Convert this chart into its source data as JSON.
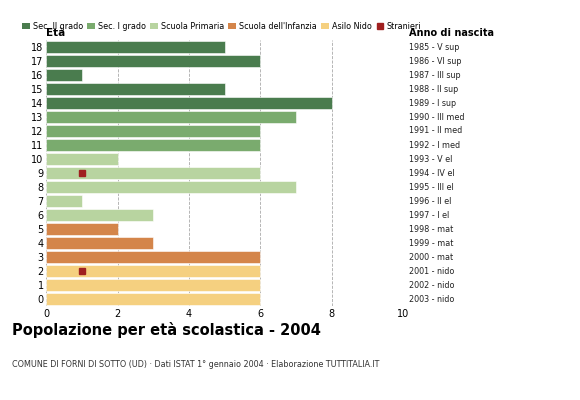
{
  "title": "Popolazione per età scolastica - 2004",
  "subtitle": "COMUNE DI FORNI DI SOTTO (UD) · Dati ISTAT 1° gennaio 2004 · Elaborazione TUTTITALIA.IT",
  "xlabel_left": "Età",
  "xlabel_right": "Anno di nascita",
  "ages": [
    18,
    17,
    16,
    15,
    14,
    13,
    12,
    11,
    10,
    9,
    8,
    7,
    6,
    5,
    4,
    3,
    2,
    1,
    0
  ],
  "anno_nascita": [
    "1985 - V sup",
    "1986 - VI sup",
    "1987 - III sup",
    "1988 - II sup",
    "1989 - I sup",
    "1990 - III med",
    "1991 - II med",
    "1992 - I med",
    "1993 - V el",
    "1994 - IV el",
    "1995 - III el",
    "1996 - II el",
    "1997 - I el",
    "1998 - mat",
    "1999 - mat",
    "2000 - mat",
    "2001 - nido",
    "2002 - nido",
    "2003 - nido"
  ],
  "values": [
    5,
    6,
    1,
    5,
    8,
    7,
    6,
    6,
    2,
    6,
    7,
    1,
    3,
    2,
    3,
    6,
    6,
    6,
    6
  ],
  "stranieri": [
    null,
    null,
    null,
    null,
    null,
    null,
    null,
    null,
    null,
    1,
    null,
    null,
    null,
    null,
    null,
    null,
    1,
    null,
    null
  ],
  "categories": {
    "Sec. II grado": {
      "ages": [
        14,
        15,
        16,
        17,
        18
      ],
      "color": "#4a7c4e"
    },
    "Sec. I grado": {
      "ages": [
        11,
        12,
        13
      ],
      "color": "#7aab6e"
    },
    "Scuola Primaria": {
      "ages": [
        6,
        7,
        8,
        9,
        10
      ],
      "color": "#b8d4a0"
    },
    "Scuola dell'Infanzia": {
      "ages": [
        3,
        4,
        5
      ],
      "color": "#d4854a"
    },
    "Asilo Nido": {
      "ages": [
        0,
        1,
        2
      ],
      "color": "#f5d080"
    }
  },
  "stranieri_color": "#a02020",
  "bar_edge_color": "#ffffff",
  "grid_color": "#aaaaaa",
  "xlim": [
    0,
    10
  ],
  "xticks": [
    0,
    2,
    4,
    6,
    8,
    10
  ],
  "bg_color": "#ffffff",
  "legend_order": [
    "Sec. II grado",
    "Sec. I grado",
    "Scuola Primaria",
    "Scuola dell'Infanzia",
    "Asilo Nido",
    "Stranieri"
  ]
}
